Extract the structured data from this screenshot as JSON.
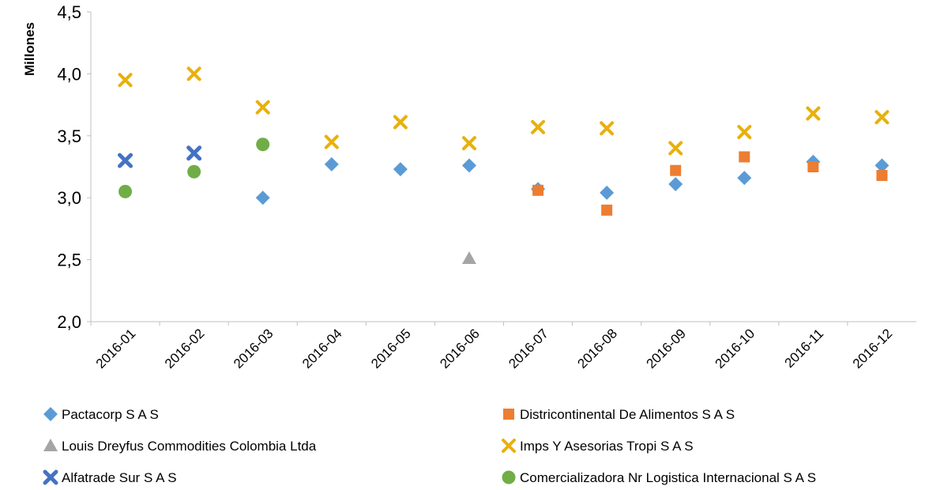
{
  "chart_data": {
    "type": "scatter",
    "title": "",
    "xlabel": "",
    "ylabel": "Millones",
    "ylim": [
      2.0,
      4.5
    ],
    "yticks": [
      "2,0",
      "2,5",
      "3,0",
      "3,5",
      "4,0",
      "4,5"
    ],
    "categories": [
      "2016-01",
      "2016-02",
      "2016-03",
      "2016-04",
      "2016-05",
      "2016-06",
      "2016-07",
      "2016-08",
      "2016-09",
      "2016-10",
      "2016-11",
      "2016-12"
    ],
    "grid": false,
    "legend": "bottom",
    "series": [
      {
        "name": "Pactacorp S A S",
        "marker": "diamond",
        "color": "#5B9BD5",
        "values": [
          null,
          null,
          3.0,
          3.27,
          3.23,
          3.26,
          3.07,
          3.04,
          3.11,
          3.16,
          3.29,
          3.26
        ]
      },
      {
        "name": "Districontinental De Alimentos S A S",
        "marker": "square",
        "color": "#ED7D31",
        "values": [
          null,
          null,
          null,
          null,
          null,
          null,
          3.06,
          2.9,
          3.22,
          3.33,
          3.25,
          3.18
        ]
      },
      {
        "name": "Louis Dreyfus Commodities Colombia Ltda",
        "marker": "triangle",
        "color": "#A5A5A5",
        "values": [
          null,
          null,
          null,
          null,
          null,
          2.51,
          null,
          null,
          null,
          null,
          null,
          null
        ]
      },
      {
        "name": "Imps Y Asesorias Tropi S A S",
        "marker": "x",
        "color": "#E8B00C",
        "values": [
          3.95,
          4.0,
          3.73,
          3.45,
          3.61,
          3.44,
          3.57,
          3.56,
          3.4,
          3.53,
          3.68,
          3.65
        ]
      },
      {
        "name": "Alfatrade Sur S A S",
        "marker": "cross",
        "color": "#4472C4",
        "values": [
          3.3,
          3.36,
          null,
          null,
          null,
          null,
          null,
          null,
          null,
          null,
          null,
          null
        ]
      },
      {
        "name": "Comercializadora Nr Logistica Internacional S A S",
        "marker": "circle",
        "color": "#70AD47",
        "values": [
          3.05,
          3.21,
          3.43,
          null,
          null,
          null,
          null,
          null,
          null,
          null,
          null,
          null
        ]
      }
    ]
  }
}
